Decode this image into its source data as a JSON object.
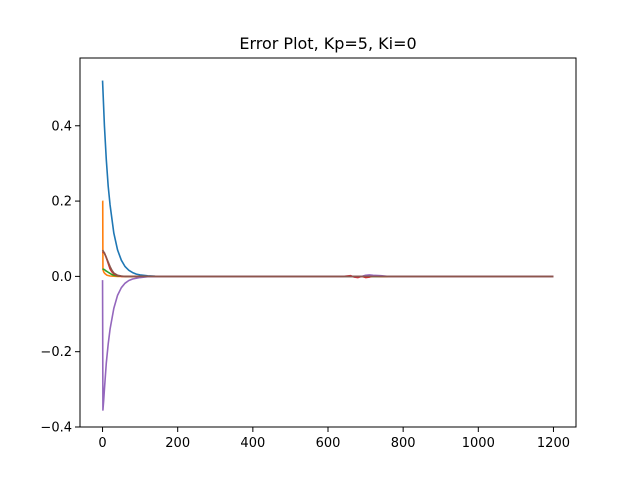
{
  "chart_data": {
    "type": "line",
    "title": "Error Plot, Kp=5, Ki=0",
    "xlabel": "",
    "ylabel": "",
    "xlim": [
      -60,
      1260
    ],
    "ylim": [
      -0.4,
      0.58
    ],
    "xticks": [
      0,
      200,
      400,
      600,
      800,
      1000,
      1200
    ],
    "xtick_labels": [
      "0",
      "200",
      "400",
      "600",
      "800",
      "1000",
      "1200"
    ],
    "yticks": [
      -0.4,
      -0.2,
      0.0,
      0.2,
      0.4
    ],
    "ytick_labels": [
      "−0.4",
      "−0.2",
      "0.0",
      "0.2",
      "0.4"
    ],
    "grid": false,
    "legend": "none",
    "series": [
      {
        "color": "#1f77b4",
        "x": [
          0,
          5,
          10,
          15,
          20,
          30,
          40,
          50,
          60,
          70,
          80,
          90,
          100,
          120,
          140,
          200,
          400,
          600,
          800,
          1000,
          1200
        ],
        "y": [
          0.52,
          0.4,
          0.31,
          0.24,
          0.19,
          0.115,
          0.07,
          0.043,
          0.026,
          0.016,
          0.01,
          0.006,
          0.004,
          0.0015,
          0.0005,
          0.0,
          0.0,
          0.0,
          0.0,
          0.0,
          0.0
        ]
      },
      {
        "color": "#ff7f0e",
        "x": [
          0,
          0.5,
          1,
          2,
          4,
          8,
          12,
          20,
          40,
          100,
          400,
          800,
          1200
        ],
        "y": [
          0.2,
          0.2,
          0.02,
          0.015,
          0.01,
          0.006,
          0.003,
          0.001,
          0.0,
          0.0,
          0.0,
          0.0,
          0.0
        ]
      },
      {
        "color": "#2ca02c",
        "x": [
          0,
          5,
          10,
          15,
          20,
          25,
          30,
          40,
          60,
          100,
          400,
          800,
          1200
        ],
        "y": [
          0.02,
          0.018,
          0.014,
          0.011,
          0.008,
          0.005,
          0.003,
          0.001,
          0.0,
          0.0,
          0.0,
          0.0,
          0.0
        ]
      },
      {
        "color": "#d62728",
        "x": [
          0,
          5,
          10,
          15,
          20,
          25,
          30,
          40,
          50,
          60,
          80,
          100,
          640,
          650,
          660,
          670,
          680,
          690,
          700,
          710,
          720,
          740,
          760,
          800,
          1000,
          1200
        ],
        "y": [
          0.065,
          0.062,
          0.05,
          0.035,
          0.02,
          0.012,
          0.007,
          0.002,
          0.0,
          0.0,
          0.0,
          0.0,
          0.0,
          0.001,
          0.002,
          -0.002,
          -0.003,
          0.0,
          -0.003,
          -0.002,
          0.001,
          0.0,
          0.0,
          0.0,
          0.0,
          0.0
        ]
      },
      {
        "color": "#9467bd",
        "x": [
          0,
          1,
          3,
          5,
          10,
          15,
          20,
          30,
          40,
          50,
          60,
          70,
          80,
          100,
          120,
          150,
          200,
          400,
          600,
          690,
          700,
          710,
          720,
          740,
          760,
          800,
          1000,
          1200
        ],
        "y": [
          -0.01,
          -0.355,
          -0.33,
          -0.3,
          -0.23,
          -0.18,
          -0.14,
          -0.085,
          -0.05,
          -0.03,
          -0.018,
          -0.011,
          -0.007,
          -0.003,
          -0.001,
          0.0,
          0.0,
          0.0,
          0.0,
          0.0,
          0.003,
          0.004,
          0.003,
          0.002,
          0.0,
          0.0,
          0.0,
          0.0
        ]
      },
      {
        "color": "#8c564b",
        "x": [
          0,
          5,
          10,
          15,
          20,
          25,
          30,
          40,
          50,
          60,
          100,
          400,
          800,
          1200
        ],
        "y": [
          0.07,
          0.062,
          0.05,
          0.038,
          0.026,
          0.016,
          0.009,
          0.003,
          0.001,
          0.0,
          0.0,
          0.0,
          0.0,
          0.0
        ]
      }
    ]
  }
}
